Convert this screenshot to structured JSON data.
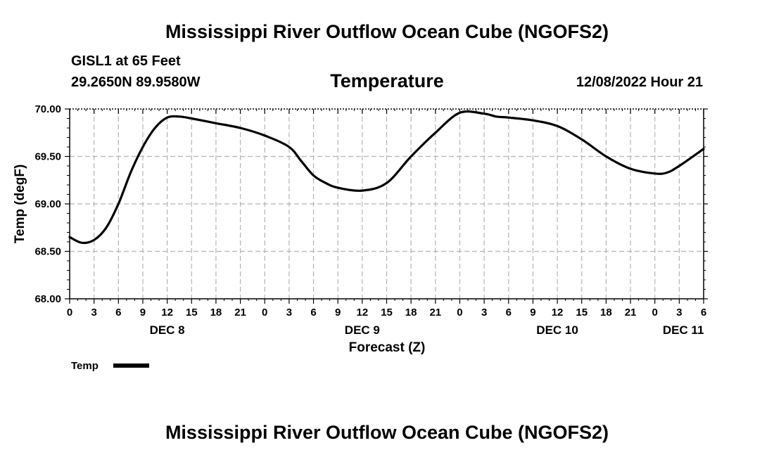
{
  "header": {
    "title": "Mississippi River Outflow Ocean Cube (NGOFS2)",
    "station": "GISL1 at 65 Feet",
    "coords": "29.2650N  89.9580W",
    "parameter": "Temperature",
    "datetime": "12/08/2022 Hour 21"
  },
  "footer": {
    "title": "Mississippi River Outflow Ocean Cube (NGOFS2)"
  },
  "chart_data": {
    "type": "line",
    "title": "Temperature",
    "xlabel": "Forecast (Z)",
    "ylabel": "Temp (degF)",
    "xlim": [
      0,
      78
    ],
    "ylim": [
      68.0,
      70.0
    ],
    "yticks": [
      68.0,
      68.5,
      69.0,
      69.5,
      70.0
    ],
    "ytick_labels": [
      "68.00",
      "68.50",
      "69.00",
      "69.50",
      "70.00"
    ],
    "xticks": [
      0,
      3,
      6,
      9,
      12,
      15,
      18,
      21,
      24,
      27,
      30,
      33,
      36,
      39,
      42,
      45,
      48,
      51,
      54,
      57,
      60,
      63,
      66,
      69,
      72,
      75,
      78
    ],
    "xtick_labels": [
      "0",
      "3",
      "6",
      "9",
      "12",
      "15",
      "18",
      "21",
      "0",
      "3",
      "6",
      "9",
      "12",
      "15",
      "18",
      "21",
      "0",
      "3",
      "6",
      "9",
      "12",
      "15",
      "18",
      "21",
      "0",
      "3",
      "6"
    ],
    "day_labels": [
      {
        "x": 12,
        "label": "DEC 8"
      },
      {
        "x": 36,
        "label": "DEC 9"
      },
      {
        "x": 60,
        "label": "DEC 10"
      },
      {
        "x": 75.5,
        "label": "DEC 11"
      }
    ],
    "grid": true,
    "legend": {
      "position": "bottom-left",
      "entries": [
        "Temp"
      ]
    },
    "series": [
      {
        "name": "Temp",
        "color": "#000000",
        "x": [
          0,
          1.5,
          3,
          4.5,
          6,
          7.5,
          9,
          10.5,
          12,
          13.5,
          15,
          18,
          21,
          24,
          27,
          28.5,
          30,
          31.5,
          33,
          36,
          39,
          42,
          45,
          48,
          51,
          52.5,
          54,
          57,
          60,
          63,
          66,
          69,
          72,
          73.5,
          75,
          78
        ],
        "y": [
          68.65,
          68.59,
          68.62,
          68.75,
          69.0,
          69.33,
          69.6,
          69.8,
          69.91,
          69.92,
          69.9,
          69.85,
          69.8,
          69.72,
          69.6,
          69.45,
          69.3,
          69.22,
          69.17,
          69.14,
          69.22,
          69.5,
          69.75,
          69.96,
          69.95,
          69.92,
          69.91,
          69.88,
          69.82,
          69.68,
          69.5,
          69.37,
          69.32,
          69.33,
          69.4,
          69.58
        ]
      }
    ]
  }
}
